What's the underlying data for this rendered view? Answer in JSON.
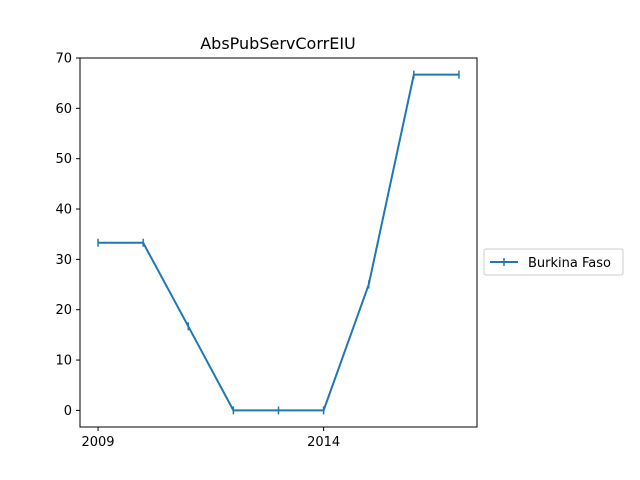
{
  "chart_data": {
    "type": "line",
    "title": "AbsPubServCorrEIU",
    "xlabel": "",
    "ylabel": "",
    "x": [
      2009,
      2010,
      2011,
      2012,
      2013,
      2014,
      2015,
      2016,
      2017
    ],
    "x_tick_labels": [
      "2009",
      "2014"
    ],
    "y_ticks": [
      0,
      10,
      20,
      30,
      40,
      50,
      60,
      70
    ],
    "xlim": [
      2008.6,
      2017.4
    ],
    "ylim": [
      -3.3,
      70
    ],
    "grid": false,
    "legend_position": "right",
    "series": [
      {
        "name": "Burkina Faso",
        "color": "#1f77b4",
        "marker": "vertical-line",
        "values": [
          33.3,
          33.3,
          16.7,
          0,
          0,
          0,
          25,
          66.7,
          66.7
        ]
      }
    ]
  }
}
